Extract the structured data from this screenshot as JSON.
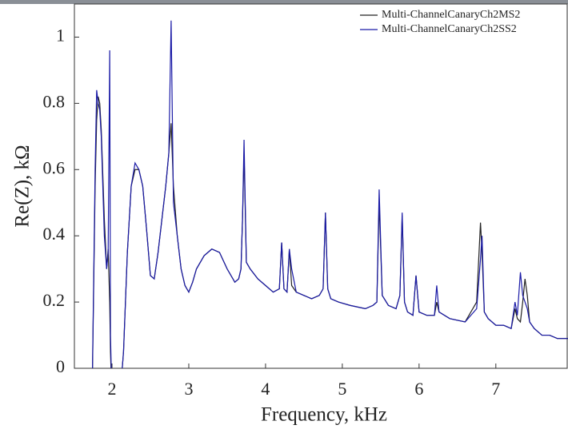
{
  "chart_data": {
    "type": "line",
    "x_label": "Frequency, kHz",
    "y_label": "Re(Z), kΩ",
    "xlim": [
      1.51,
      7.94
    ],
    "ylim": [
      0,
      1.1
    ],
    "xticks": [
      2,
      3,
      4,
      5,
      6,
      7
    ],
    "yticks": [
      0,
      0.2,
      0.4,
      0.6,
      0.8,
      1
    ],
    "legend": "top-right",
    "grid": false,
    "x": [
      1.74,
      1.78,
      1.8,
      1.82,
      1.84,
      1.86,
      1.9,
      1.93,
      1.95,
      1.97,
      1.98,
      2.0,
      2.05,
      2.1,
      2.15,
      2.2,
      2.25,
      2.3,
      2.35,
      2.4,
      2.45,
      2.5,
      2.55,
      2.6,
      2.65,
      2.7,
      2.74,
      2.77,
      2.8,
      2.85,
      2.9,
      2.95,
      3.0,
      3.05,
      3.1,
      3.2,
      3.3,
      3.4,
      3.5,
      3.6,
      3.65,
      3.68,
      3.7,
      3.72,
      3.75,
      3.8,
      3.9,
      4.0,
      4.1,
      4.18,
      4.21,
      4.24,
      4.28,
      4.31,
      4.34,
      4.4,
      4.5,
      4.6,
      4.7,
      4.75,
      4.78,
      4.81,
      4.85,
      4.95,
      5.1,
      5.3,
      5.4,
      5.45,
      5.48,
      5.52,
      5.6,
      5.7,
      5.75,
      5.78,
      5.81,
      5.85,
      5.92,
      5.96,
      6.0,
      6.1,
      6.2,
      6.23,
      6.26,
      6.4,
      6.6,
      6.75,
      6.8,
      6.82,
      6.85,
      6.9,
      7.0,
      7.1,
      7.2,
      7.25,
      7.28,
      7.32,
      7.35,
      7.38,
      7.41,
      7.44,
      7.5,
      7.6,
      7.7,
      7.8,
      7.94
    ],
    "series": [
      {
        "name": "Multi-ChannelCanaryCh2MS2",
        "color": "#222222",
        "values": [
          -0.1,
          0.55,
          0.75,
          0.82,
          0.8,
          0.72,
          0.45,
          0.3,
          0.36,
          0.2,
          0.05,
          -0.1,
          -0.1,
          -0.1,
          0.05,
          0.35,
          0.55,
          0.6,
          0.6,
          0.55,
          0.42,
          0.28,
          0.27,
          0.35,
          0.45,
          0.55,
          0.65,
          0.74,
          0.55,
          0.4,
          0.3,
          0.25,
          0.23,
          0.26,
          0.3,
          0.34,
          0.36,
          0.35,
          0.3,
          0.26,
          0.27,
          0.3,
          0.45,
          0.65,
          0.32,
          0.3,
          0.27,
          0.25,
          0.23,
          0.24,
          0.38,
          0.24,
          0.23,
          0.36,
          0.25,
          0.23,
          0.22,
          0.21,
          0.22,
          0.24,
          0.47,
          0.24,
          0.21,
          0.2,
          0.19,
          0.18,
          0.19,
          0.2,
          0.5,
          0.22,
          0.19,
          0.18,
          0.22,
          0.46,
          0.2,
          0.17,
          0.16,
          0.28,
          0.17,
          0.16,
          0.16,
          0.2,
          0.17,
          0.15,
          0.14,
          0.2,
          0.44,
          0.35,
          0.17,
          0.15,
          0.13,
          0.13,
          0.12,
          0.18,
          0.15,
          0.14,
          0.2,
          0.27,
          0.22,
          0.14,
          0.12,
          0.1,
          0.1,
          0.09,
          0.09
        ]
      },
      {
        "name": "Multi-ChannelCanaryCh2SS2",
        "color": "#1a1aa6",
        "values": [
          -0.1,
          0.6,
          0.84,
          0.8,
          0.78,
          0.7,
          0.4,
          0.3,
          0.35,
          0.96,
          0.1,
          -0.1,
          -0.1,
          -0.1,
          0.05,
          0.35,
          0.55,
          0.62,
          0.6,
          0.55,
          0.42,
          0.28,
          0.27,
          0.35,
          0.45,
          0.55,
          0.65,
          1.05,
          0.5,
          0.4,
          0.3,
          0.25,
          0.23,
          0.26,
          0.3,
          0.34,
          0.36,
          0.35,
          0.3,
          0.26,
          0.27,
          0.3,
          0.45,
          0.69,
          0.32,
          0.3,
          0.27,
          0.25,
          0.23,
          0.24,
          0.38,
          0.24,
          0.23,
          0.36,
          0.3,
          0.23,
          0.22,
          0.21,
          0.22,
          0.24,
          0.47,
          0.24,
          0.21,
          0.2,
          0.19,
          0.18,
          0.19,
          0.2,
          0.54,
          0.22,
          0.19,
          0.18,
          0.22,
          0.47,
          0.2,
          0.17,
          0.16,
          0.28,
          0.17,
          0.16,
          0.16,
          0.25,
          0.17,
          0.15,
          0.14,
          0.18,
          0.33,
          0.4,
          0.17,
          0.15,
          0.13,
          0.13,
          0.12,
          0.2,
          0.16,
          0.29,
          0.22,
          0.2,
          0.18,
          0.14,
          0.12,
          0.1,
          0.1,
          0.09,
          0.09
        ]
      }
    ]
  }
}
